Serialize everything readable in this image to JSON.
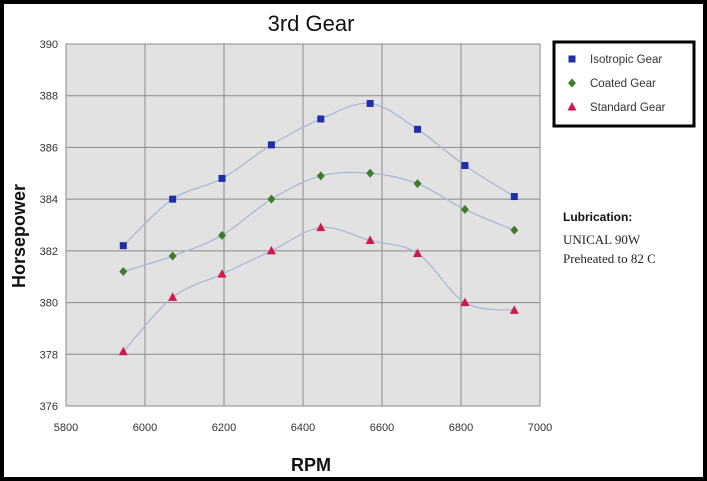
{
  "colors": {
    "isotropic": "#1f2fa8",
    "coated": "#3d7d2a",
    "standard": "#d0184c",
    "curve": "#a9b8d6",
    "plot_bg": "#e2e2e2",
    "grid": "#8a8a8a"
  },
  "chart_data": {
    "type": "scatter",
    "title": "3rd Gear",
    "xlabel": "RPM",
    "ylabel": "Horsepower",
    "xlim": [
      5800,
      7000
    ],
    "ylim": [
      376,
      390
    ],
    "x_ticks": [
      5800,
      6000,
      6200,
      6400,
      6600,
      6800,
      7000
    ],
    "y_ticks": [
      376,
      378,
      380,
      382,
      384,
      386,
      388,
      390
    ],
    "x_tick_labels": [
      "5800",
      "6000",
      "6200",
      "6400",
      "6600",
      "6800",
      "7000"
    ],
    "y_tick_labels": [
      "376",
      "378",
      "380",
      "382",
      "384",
      "386",
      "388",
      "390"
    ],
    "grid": true,
    "legend_position": "top-right",
    "series": [
      {
        "name": "Isotropic Gear",
        "marker": "square",
        "x": [
          5945,
          6070,
          6195,
          6320,
          6445,
          6570,
          6690,
          6810,
          6935
        ],
        "y": [
          382.2,
          384.0,
          384.8,
          386.1,
          387.1,
          387.7,
          386.7,
          385.3,
          384.1
        ]
      },
      {
        "name": "Coated Gear",
        "marker": "diamond",
        "x": [
          5945,
          6070,
          6195,
          6320,
          6445,
          6570,
          6690,
          6810,
          6935
        ],
        "y": [
          381.2,
          381.8,
          382.6,
          384.0,
          384.9,
          385.0,
          384.6,
          383.6,
          382.8
        ]
      },
      {
        "name": "Standard Gear",
        "marker": "triangle",
        "x": [
          5945,
          6070,
          6195,
          6320,
          6445,
          6570,
          6690,
          6810,
          6935
        ],
        "y": [
          378.1,
          380.2,
          381.1,
          382.0,
          382.9,
          382.4,
          381.9,
          380.0,
          379.7
        ]
      }
    ]
  },
  "annotation": {
    "title": "Lubrication:",
    "line1": "UNICAL 90W",
    "line2": "Preheated to  82 C"
  }
}
